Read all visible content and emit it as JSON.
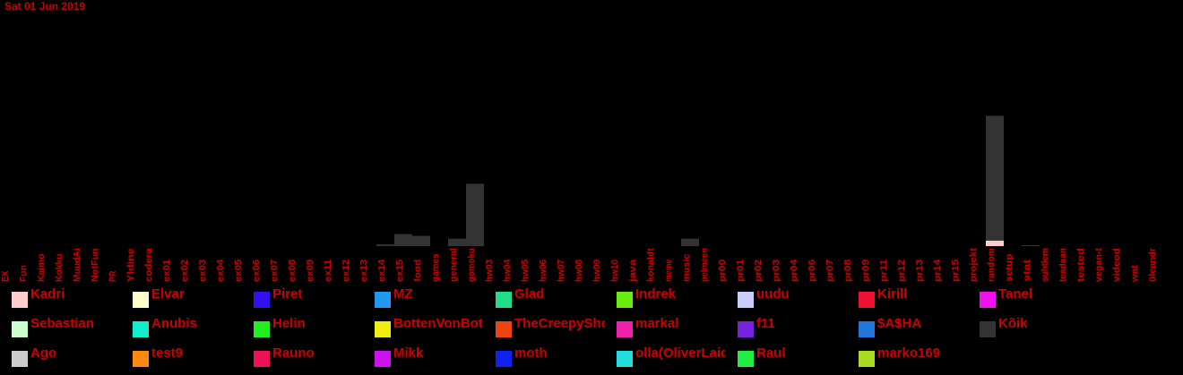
{
  "date_label": "Sat 01 Jun 2019",
  "chart_data": {
    "type": "bar",
    "stacked": true,
    "title": "",
    "xlabel": "",
    "ylabel": "",
    "ylim": [
      0,
      150
    ],
    "grid": false,
    "legend": "bottom",
    "background": "#000000",
    "label_color": "#cc0000",
    "categories": [
      "EX",
      "Fun",
      "Kaimo",
      "Kokku",
      "MuudAi",
      "NotFun",
      "PR",
      "Yldine",
      "codera",
      "ex01",
      "ex02",
      "ex03",
      "ex04",
      "ex05",
      "ex06",
      "ex07",
      "ex08",
      "ex09",
      "ex11",
      "ex12",
      "ex13",
      "ex14",
      "ex15",
      "food",
      "games",
      "general",
      "gomoku",
      "hw03",
      "hw04",
      "hw05",
      "hw06",
      "hw07",
      "hw08",
      "hw09",
      "hw10",
      "java",
      "konaldt",
      "meme",
      "music",
      "pelmeen",
      "pr00",
      "pr01",
      "pr02",
      "pr03",
      "pr04",
      "pr06",
      "pr07",
      "pr08",
      "pr09",
      "pr11",
      "pr12",
      "pr13",
      "pr14",
      "pr15",
      "projekt",
      "random",
      "setup",
      "stat",
      "suhtlem",
      "teadaan",
      "tested",
      "vegan-t",
      "videod",
      "wat",
      "üleandr"
    ],
    "series": [
      {
        "name": "Kadri",
        "color": "#ffcccc",
        "values": {
          "random": 6
        }
      },
      {
        "name": "Elvar",
        "color": "#ffffcc",
        "values": {}
      },
      {
        "name": "Piret",
        "color": "#3311ee",
        "values": {}
      },
      {
        "name": "MZ",
        "color": "#2299ee",
        "values": {}
      },
      {
        "name": "Glad",
        "color": "#22dd88",
        "values": {}
      },
      {
        "name": "Indrek",
        "color": "#66ee11",
        "values": {}
      },
      {
        "name": "uudu",
        "color": "#ccccff",
        "values": {}
      },
      {
        "name": "Kirill",
        "color": "#ee1133",
        "values": {}
      },
      {
        "name": "Tanel",
        "color": "#ee11ee",
        "values": {}
      },
      {
        "name": "Sebastian",
        "color": "#ccffcc",
        "values": {}
      },
      {
        "name": "Anubis",
        "color": "#11eecc",
        "values": {}
      },
      {
        "name": "Helin",
        "color": "#22ee22",
        "values": {}
      },
      {
        "name": "BottenVonBot",
        "color": "#eeee11",
        "values": {}
      },
      {
        "name": "TheCreepyShe",
        "color": "#ee4411",
        "values": {}
      },
      {
        "name": "markal",
        "color": "#ee22aa",
        "values": {}
      },
      {
        "name": "f11",
        "color": "#7722dd",
        "values": {}
      },
      {
        "name": "$A$HA",
        "color": "#2277dd",
        "values": {}
      },
      {
        "name": "Kõik",
        "color": "#333333",
        "values": {
          "ex14": 2,
          "ex15": 13,
          "food": 11,
          "general": 8,
          "gomoku": 67,
          "music": 8,
          "random": 134,
          "stat": 1
        }
      },
      {
        "name": "Ago",
        "color": "#cccccc",
        "values": {}
      },
      {
        "name": "test9",
        "color": "#ff8811",
        "values": {}
      },
      {
        "name": "Rauno",
        "color": "#ee1155",
        "values": {}
      },
      {
        "name": "Mikk",
        "color": "#cc11ee",
        "values": {}
      },
      {
        "name": "moth",
        "color": "#1122ee",
        "values": {}
      },
      {
        "name": "olla(OliverLaidoja)",
        "color": "#22dddd",
        "values": {}
      },
      {
        "name": "Raul",
        "color": "#22ee44",
        "values": {}
      },
      {
        "name": "marko169",
        "color": "#aadd22",
        "values": {}
      }
    ]
  }
}
